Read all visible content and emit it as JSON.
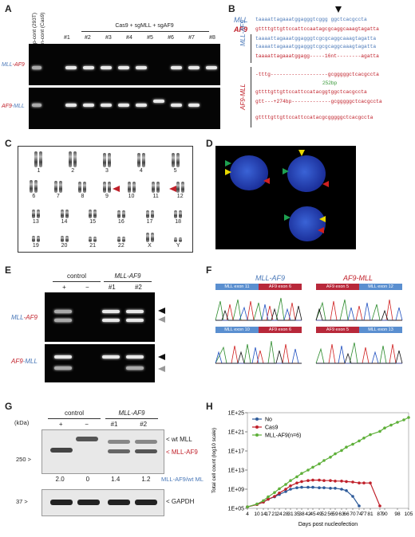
{
  "panels": {
    "A": {
      "letter": "A",
      "header": "Cas9 + sgMLL + sgAF9",
      "controls": [
        "p-cont (293T)",
        "n-cont (Cas9)"
      ],
      "lanes": [
        "#1",
        "#2",
        "#3",
        "#4",
        "#5",
        "#6",
        "#7",
        "#8"
      ],
      "row1": {
        "a": "MLL",
        "b": "-AF9"
      },
      "row2": {
        "a": "AF9",
        "b": "-MLL"
      }
    },
    "B": {
      "letter": "B",
      "mll_label": "MLL",
      "af9_label": "AF9",
      "mllaf9_label": "MLL-AF9",
      "af9mll_label": "AF9-MLL",
      "mll_seq": "taaaattagaaatggagggtcggg ggctcacgccta",
      "af9_seq": "gttttgttgttccattccaatagcgcaggcaaagtagatta",
      "mllaf9_lines": [
        "taaaattagaaatggagggtcgcgcaggcaaagtagatta",
        "taaaattagaaatggagggtcgcgcaggcaaagtagatta",
        "taaaattagaaatggagg-----16nt--------agatta"
      ],
      "af9mll_lines": [
        "-tttg-------------------gcgggggctcacgccta",
        "gttttgttgttccattccatacggtggctcacgccta",
        "gtt---+274bp-------------gcgggggctcacgccta",
        "gttttgttgttccattccatacgcgggggctcacgccta"
      ],
      "note_252": "252bp"
    },
    "C": {
      "letter": "C",
      "chromosomes": [
        "1",
        "2",
        "3",
        "4",
        "5",
        "6",
        "7",
        "8",
        "9",
        "10",
        "11",
        "12",
        "13",
        "14",
        "15",
        "16",
        "17",
        "18",
        "19",
        "20",
        "21",
        "22",
        "X",
        "Y"
      ]
    },
    "D": {
      "letter": "D"
    },
    "E": {
      "letter": "E",
      "group1": "control",
      "group2": "MLL-AF9",
      "lanes": [
        "+",
        "−",
        "#1",
        "#2"
      ],
      "row1": {
        "a": "MLL",
        "b": "-AF9"
      },
      "row2": {
        "a": "AF9",
        "b": "-MLL"
      }
    },
    "F": {
      "letter": "F",
      "title1": "MLL-AF9",
      "title2": "AF9-MLL",
      "bars": [
        [
          "MLL exon 11",
          "AF9 exon 6"
        ],
        [
          "AF9 exon 5",
          "MLL exon 12"
        ],
        [
          "MLL exon 10",
          "AF9 exon 6"
        ],
        [
          "AF9 exon 5",
          "MLL exon 13"
        ]
      ]
    },
    "G": {
      "letter": "G",
      "kda": "(kDa)",
      "group1": "control",
      "group2": "MLL-AF9",
      "lanes": [
        "+",
        "−",
        "#1",
        "#2"
      ],
      "marker1": "250 >",
      "marker2": "37 >",
      "wt_label": "< wt MLL",
      "fusion_label": "< MLL-AF9",
      "gapdh_label": "< GAPDH",
      "ratios": [
        "2.0",
        "0",
        "1.4",
        "1.2"
      ],
      "ratio_label": "MLL-AF9/wt ML"
    },
    "H": {
      "letter": "H"
    }
  },
  "chart_data": {
    "type": "line",
    "xlabel": "Days post nucleofection",
    "ylabel": "Total cell count (log10 scale)",
    "x_ticks": [
      4,
      10,
      14,
      17,
      21,
      24,
      28,
      31,
      35,
      38,
      42,
      45,
      49,
      52,
      56,
      59,
      63,
      66,
      70,
      74,
      77,
      81,
      87,
      90,
      98,
      105
    ],
    "y_ticks": [
      "1E+05",
      "1E+09",
      "1E+13",
      "1E+17",
      "1E+21",
      "1E+25"
    ],
    "ylim_log10": [
      5,
      25
    ],
    "legend_position": "top-left",
    "series": [
      {
        "name": "No",
        "color": "#2e5b9a",
        "x": [
          4,
          10,
          14,
          17,
          21,
          24,
          28,
          31,
          35,
          38,
          42,
          45,
          49,
          52,
          56,
          59,
          63,
          66,
          70,
          74
        ],
        "log10_y": [
          5.3,
          5.8,
          6.3,
          6.9,
          7.4,
          7.9,
          8.5,
          9.0,
          9.3,
          9.4,
          9.4,
          9.4,
          9.3,
          9.3,
          9.2,
          9.2,
          9.0,
          8.7,
          7.5,
          5.5
        ]
      },
      {
        "name": "Cas9",
        "color": "#c0202a",
        "x": [
          4,
          10,
          14,
          17,
          21,
          24,
          28,
          31,
          35,
          38,
          42,
          45,
          49,
          52,
          56,
          59,
          63,
          66,
          70,
          74,
          77,
          81,
          87
        ],
        "log10_y": [
          5.3,
          5.8,
          6.3,
          6.9,
          7.5,
          8.2,
          9.0,
          9.7,
          10.3,
          10.6,
          10.8,
          10.9,
          10.9,
          10.8,
          10.8,
          10.7,
          10.7,
          10.6,
          10.5,
          10.3,
          10.3,
          10.3,
          5.5
        ]
      },
      {
        "name": "MLL-AF9(n=6)",
        "color": "#5fb03a",
        "x": [
          4,
          10,
          14,
          17,
          21,
          24,
          28,
          31,
          35,
          38,
          42,
          45,
          49,
          52,
          56,
          59,
          63,
          66,
          70,
          74,
          77,
          81,
          87,
          90,
          94,
          98,
          102,
          105
        ],
        "log10_y": [
          5.3,
          5.9,
          6.6,
          7.4,
          8.3,
          9.1,
          10.0,
          10.8,
          11.6,
          12.3,
          13.0,
          13.6,
          14.3,
          15.0,
          15.7,
          16.4,
          17.1,
          17.8,
          18.4,
          19.1,
          19.7,
          20.4,
          21.1,
          21.8,
          22.4,
          23.0,
          23.5,
          24.0
        ]
      }
    ]
  }
}
